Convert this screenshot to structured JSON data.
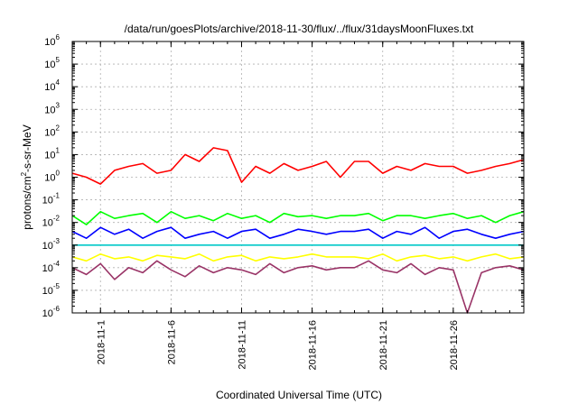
{
  "chart_data": {
    "type": "line",
    "title": "/data/run/goesPlots/archive/2018-11-30/flux/../flux/31daysMoonFluxes.txt",
    "xlabel": "Coordinated Universal Time (UTC)",
    "ylabel": {
      "prefix": "protons/cm",
      "sup": "2",
      "suffix": "-s-sr-MeV"
    },
    "y_scale": "log",
    "ylim": [
      1e-06,
      1000000.0
    ],
    "xlim": [
      "2018-10-30",
      "2018-12-01"
    ],
    "grid": true,
    "x_ticks": [
      {
        "label": "2018-11-1",
        "date": "2018-11-01"
      },
      {
        "label": "2018-11-6",
        "date": "2018-11-06"
      },
      {
        "label": "2018-11-11",
        "date": "2018-11-11"
      },
      {
        "label": "2018-11-16",
        "date": "2018-11-16"
      },
      {
        "label": "2018-11-21",
        "date": "2018-11-21"
      },
      {
        "label": "2018-11-26",
        "date": "2018-11-26"
      }
    ],
    "y_ticks": [
      {
        "base": "10",
        "exp": "-6"
      },
      {
        "base": "10",
        "exp": "-5"
      },
      {
        "base": "10",
        "exp": "-4"
      },
      {
        "base": "10",
        "exp": "-3"
      },
      {
        "base": "10",
        "exp": "-2"
      },
      {
        "base": "10",
        "exp": "-1"
      },
      {
        "base": "10",
        "exp": "0"
      },
      {
        "base": "10",
        "exp": "1"
      },
      {
        "base": "10",
        "exp": "2"
      },
      {
        "base": "10",
        "exp": "3"
      },
      {
        "base": "10",
        "exp": "4"
      },
      {
        "base": "10",
        "exp": "5"
      },
      {
        "base": "10",
        "exp": "6"
      }
    ],
    "series": [
      {
        "color": "#ff0000",
        "x": [
          "2018-10-30",
          "2018-10-31",
          "2018-11-01",
          "2018-11-02",
          "2018-11-03",
          "2018-11-04",
          "2018-11-05",
          "2018-11-06",
          "2018-11-07",
          "2018-11-08",
          "2018-11-09",
          "2018-11-10",
          "2018-11-11",
          "2018-11-12",
          "2018-11-13",
          "2018-11-14",
          "2018-11-15",
          "2018-11-16",
          "2018-11-17",
          "2018-11-18",
          "2018-11-19",
          "2018-11-20",
          "2018-11-21",
          "2018-11-22",
          "2018-11-23",
          "2018-11-24",
          "2018-11-25",
          "2018-11-26",
          "2018-11-27",
          "2018-11-28",
          "2018-11-29",
          "2018-11-30",
          "2018-12-01"
        ],
        "y": [
          1.5,
          1.0,
          0.5,
          2.0,
          3.0,
          4.0,
          1.5,
          2.0,
          10.0,
          5.0,
          20.0,
          15.0,
          0.6,
          3.0,
          1.5,
          4.0,
          2.0,
          3.0,
          5.0,
          1.0,
          5.0,
          5.0,
          1.5,
          3.0,
          2.0,
          4.0,
          3.0,
          3.0,
          1.5,
          2.0,
          3.0,
          4.0,
          6.0
        ]
      },
      {
        "color": "#00ff00",
        "x": [
          "2018-10-30",
          "2018-10-31",
          "2018-11-01",
          "2018-11-02",
          "2018-11-03",
          "2018-11-04",
          "2018-11-05",
          "2018-11-06",
          "2018-11-07",
          "2018-11-08",
          "2018-11-09",
          "2018-11-10",
          "2018-11-11",
          "2018-11-12",
          "2018-11-13",
          "2018-11-14",
          "2018-11-15",
          "2018-11-16",
          "2018-11-17",
          "2018-11-18",
          "2018-11-19",
          "2018-11-20",
          "2018-11-21",
          "2018-11-22",
          "2018-11-23",
          "2018-11-24",
          "2018-11-25",
          "2018-11-26",
          "2018-11-27",
          "2018-11-28",
          "2018-11-29",
          "2018-11-30",
          "2018-12-01"
        ],
        "y": [
          0.02,
          0.008,
          0.03,
          0.015,
          0.02,
          0.025,
          0.01,
          0.03,
          0.015,
          0.02,
          0.012,
          0.025,
          0.015,
          0.02,
          0.01,
          0.025,
          0.018,
          0.02,
          0.015,
          0.02,
          0.02,
          0.025,
          0.012,
          0.02,
          0.02,
          0.015,
          0.02,
          0.025,
          0.015,
          0.02,
          0.01,
          0.02,
          0.03
        ]
      },
      {
        "color": "#0000ff",
        "x": [
          "2018-10-30",
          "2018-10-31",
          "2018-11-01",
          "2018-11-02",
          "2018-11-03",
          "2018-11-04",
          "2018-11-05",
          "2018-11-06",
          "2018-11-07",
          "2018-11-08",
          "2018-11-09",
          "2018-11-10",
          "2018-11-11",
          "2018-11-12",
          "2018-11-13",
          "2018-11-14",
          "2018-11-15",
          "2018-11-16",
          "2018-11-17",
          "2018-11-18",
          "2018-11-19",
          "2018-11-20",
          "2018-11-21",
          "2018-11-22",
          "2018-11-23",
          "2018-11-24",
          "2018-11-25",
          "2018-11-26",
          "2018-11-27",
          "2018-11-28",
          "2018-11-29",
          "2018-11-30",
          "2018-12-01"
        ],
        "y": [
          0.004,
          0.002,
          0.006,
          0.003,
          0.005,
          0.002,
          0.004,
          0.006,
          0.002,
          0.003,
          0.004,
          0.002,
          0.004,
          0.005,
          0.002,
          0.003,
          0.005,
          0.004,
          0.003,
          0.004,
          0.004,
          0.005,
          0.002,
          0.004,
          0.003,
          0.006,
          0.002,
          0.004,
          0.005,
          0.003,
          0.002,
          0.003,
          0.004
        ]
      },
      {
        "color": "#00c8c8",
        "x": [
          "2018-10-30",
          "2018-11-05",
          "2018-11-10",
          "2018-11-15",
          "2018-11-20",
          "2018-11-25",
          "2018-12-01"
        ],
        "y": [
          0.001,
          0.001,
          0.001,
          0.001,
          0.001,
          0.001,
          0.001
        ]
      },
      {
        "color": "#ffff00",
        "x": [
          "2018-10-30",
          "2018-10-31",
          "2018-11-01",
          "2018-11-02",
          "2018-11-03",
          "2018-11-04",
          "2018-11-05",
          "2018-11-06",
          "2018-11-07",
          "2018-11-08",
          "2018-11-09",
          "2018-11-10",
          "2018-11-11",
          "2018-11-12",
          "2018-11-13",
          "2018-11-14",
          "2018-11-15",
          "2018-11-16",
          "2018-11-17",
          "2018-11-18",
          "2018-11-19",
          "2018-11-20",
          "2018-11-21",
          "2018-11-22",
          "2018-11-23",
          "2018-11-24",
          "2018-11-25",
          "2018-11-26",
          "2018-11-27",
          "2018-11-28",
          "2018-11-29",
          "2018-11-30",
          "2018-12-01"
        ],
        "y": [
          0.0003,
          0.0002,
          0.0004,
          0.00025,
          0.0003,
          0.0002,
          0.00035,
          0.0003,
          0.00025,
          0.0004,
          0.0002,
          0.0003,
          0.00035,
          0.0002,
          0.0003,
          0.00025,
          0.0003,
          0.0004,
          0.0003,
          0.0003,
          0.0003,
          0.00025,
          0.0004,
          0.0002,
          0.0003,
          0.00035,
          0.00025,
          0.0003,
          0.0002,
          0.0003,
          0.0004,
          0.00025,
          0.0003
        ]
      },
      {
        "color": "#993366",
        "x": [
          "2018-10-30",
          "2018-10-31",
          "2018-11-01",
          "2018-11-02",
          "2018-11-03",
          "2018-11-04",
          "2018-11-05",
          "2018-11-06",
          "2018-11-07",
          "2018-11-08",
          "2018-11-09",
          "2018-11-10",
          "2018-11-11",
          "2018-11-12",
          "2018-11-13",
          "2018-11-14",
          "2018-11-15",
          "2018-11-16",
          "2018-11-17",
          "2018-11-18",
          "2018-11-19",
          "2018-11-20",
          "2018-11-21",
          "2018-11-22",
          "2018-11-23",
          "2018-11-24",
          "2018-11-25",
          "2018-11-26",
          "2018-11-27",
          "2018-11-28",
          "2018-11-29",
          "2018-11-30",
          "2018-12-01"
        ],
        "y": [
          0.0001,
          5e-05,
          0.00015,
          3e-05,
          0.0001,
          6e-05,
          0.0002,
          8e-05,
          4e-05,
          0.00012,
          6e-05,
          0.0001,
          8e-05,
          5e-05,
          0.00015,
          6e-05,
          0.0001,
          0.00012,
          8e-05,
          0.0001,
          0.0001,
          0.0002,
          8e-05,
          6e-05,
          0.00015,
          5e-05,
          0.0001,
          8e-05,
          1e-06,
          6e-05,
          0.0001,
          0.00012,
          8e-05
        ]
      }
    ]
  }
}
